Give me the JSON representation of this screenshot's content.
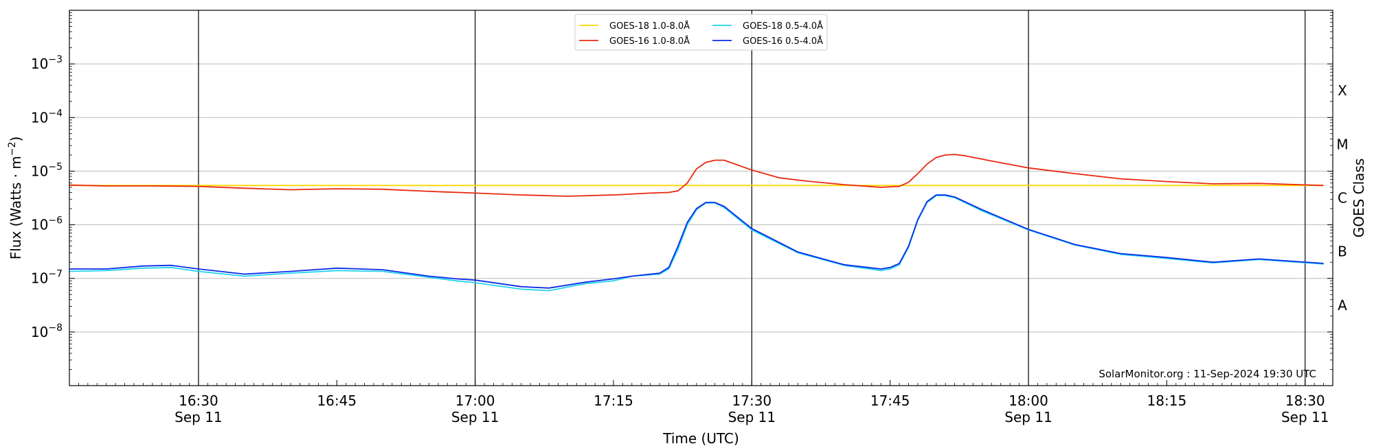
{
  "chart_data": {
    "type": "line",
    "xlabel": "Time (UTC)",
    "ylabel": "Flux (Watts · m⁻²)",
    "y2label": "GOES Class",
    "y_scale": "log",
    "ylim": [
      1e-09,
      0.01
    ],
    "xlim": [
      "16:16",
      "18:33"
    ],
    "x_ticks": [
      {
        "time": "16:30",
        "label": "16:30",
        "date": "Sep 11",
        "major": true
      },
      {
        "time": "16:45",
        "label": "16:45",
        "date": "",
        "major": false
      },
      {
        "time": "17:00",
        "label": "17:00",
        "date": "Sep 11",
        "major": true
      },
      {
        "time": "17:15",
        "label": "17:15",
        "date": "",
        "major": false
      },
      {
        "time": "17:30",
        "label": "17:30",
        "date": "Sep 11",
        "major": true
      },
      {
        "time": "17:45",
        "label": "17:45",
        "date": "",
        "major": false
      },
      {
        "time": "18:00",
        "label": "18:00",
        "date": "Sep 11",
        "major": true
      },
      {
        "time": "18:15",
        "label": "18:15",
        "date": "",
        "major": false
      },
      {
        "time": "18:30",
        "label": "18:30",
        "date": "Sep 11",
        "major": true
      }
    ],
    "y_ticks": [
      {
        "exp": -8,
        "base": "10",
        "sup": "−8"
      },
      {
        "exp": -7,
        "base": "10",
        "sup": "−7"
      },
      {
        "exp": -6,
        "base": "10",
        "sup": "−6"
      },
      {
        "exp": -5,
        "base": "10",
        "sup": "−5"
      },
      {
        "exp": -4,
        "base": "10",
        "sup": "−4"
      },
      {
        "exp": -3,
        "base": "10",
        "sup": "−3"
      }
    ],
    "goes_classes": [
      {
        "label": "A",
        "exp": -7.5
      },
      {
        "label": "B",
        "exp": -6.5
      },
      {
        "label": "C",
        "exp": -5.5
      },
      {
        "label": "M",
        "exp": -4.5
      },
      {
        "label": "X",
        "exp": -3.5
      }
    ],
    "grid": "horizontal",
    "legend_position": "top-center",
    "legend_columns": 2,
    "credit": "SolarMonitor.org : 11-Sep-2024 19:30 UTC",
    "series": [
      {
        "name": "GOES-18 1.0-8.0Å",
        "color": "#FFD700",
        "x": [
          "16:16",
          "18:32"
        ],
        "values": [
          5.4e-06,
          5.4e-06
        ]
      },
      {
        "name": "GOES-16 1.0-8.0Å",
        "color": "#E8280F",
        "x": [
          "16:16",
          "16:20",
          "16:25",
          "16:30",
          "16:35",
          "16:40",
          "16:45",
          "16:50",
          "16:55",
          "17:00",
          "17:05",
          "17:10",
          "17:15",
          "17:19",
          "17:21",
          "17:22",
          "17:23",
          "17:24",
          "17:25",
          "17:26",
          "17:27",
          "17:30",
          "17:33",
          "17:36",
          "17:40",
          "17:44",
          "17:46",
          "17:47",
          "17:48",
          "17:49",
          "17:50",
          "17:51",
          "17:52",
          "17:53",
          "17:56",
          "18:00",
          "18:05",
          "18:10",
          "18:15",
          "18:20",
          "18:25",
          "18:32"
        ],
        "values": [
          5.5e-06,
          5.3e-06,
          5.3e-06,
          5.2e-06,
          4.8e-06,
          4.5e-06,
          4.7e-06,
          4.6e-06,
          4.2e-06,
          3.9e-06,
          3.6e-06,
          3.4e-06,
          3.6e-06,
          3.9e-06,
          4e-06,
          4.3e-06,
          6e-06,
          1.1e-05,
          1.45e-05,
          1.6e-05,
          1.6e-05,
          1.05e-05,
          7.5e-06,
          6.5e-06,
          5.6e-06,
          5e-06,
          5.2e-06,
          6.2e-06,
          9e-06,
          1.35e-05,
          1.8e-05,
          2e-05,
          2.05e-05,
          1.95e-05,
          1.55e-05,
          1.15e-05,
          9e-06,
          7.2e-06,
          6.4e-06,
          5.8e-06,
          5.9e-06,
          5.4e-06
        ]
      },
      {
        "name": "GOES-18 0.5-4.0Å",
        "color": "#22D3EE",
        "x": [
          "16:16",
          "16:20",
          "16:24",
          "16:27",
          "16:30",
          "16:35",
          "16:40",
          "16:45",
          "16:50",
          "16:55",
          "16:58",
          "17:00",
          "17:05",
          "17:08",
          "17:12",
          "17:15",
          "17:17",
          "17:20",
          "17:21",
          "17:22",
          "17:23",
          "17:24",
          "17:25",
          "17:26",
          "17:27",
          "17:30",
          "17:35",
          "17:40",
          "17:44",
          "17:45",
          "17:46",
          "17:47",
          "17:48",
          "17:49",
          "17:50",
          "17:51",
          "17:52",
          "17:55",
          "18:00",
          "18:05",
          "18:10",
          "18:15",
          "18:20",
          "18:25",
          "18:32"
        ],
        "values": [
          1.35e-07,
          1.4e-07,
          1.55e-07,
          1.6e-07,
          1.35e-07,
          1.1e-07,
          1.25e-07,
          1.4e-07,
          1.35e-07,
          1.05e-07,
          9e-08,
          8.3e-08,
          6.3e-08,
          5.9e-08,
          8e-08,
          9e-08,
          1.1e-07,
          1.2e-07,
          1.5e-07,
          3.5e-07,
          1e-06,
          1.9e-06,
          2.55e-06,
          2.55e-06,
          2.1e-06,
          8e-07,
          3e-07,
          1.75e-07,
          1.4e-07,
          1.5e-07,
          1.8e-07,
          3.8e-07,
          1.2e-06,
          2.6e-06,
          3.5e-06,
          3.5e-06,
          3.2e-06,
          1.8e-06,
          8e-07,
          4.2e-07,
          2.8e-07,
          2.35e-07,
          1.95e-07,
          2.25e-07,
          1.85e-07
        ]
      },
      {
        "name": "GOES-16 0.5-4.0Å",
        "color": "#0A2BE8",
        "x": [
          "16:16",
          "16:20",
          "16:24",
          "16:27",
          "16:30",
          "16:35",
          "16:40",
          "16:45",
          "16:50",
          "16:55",
          "16:58",
          "17:00",
          "17:05",
          "17:08",
          "17:12",
          "17:15",
          "17:17",
          "17:20",
          "17:21",
          "17:22",
          "17:23",
          "17:24",
          "17:25",
          "17:26",
          "17:27",
          "17:30",
          "17:35",
          "17:40",
          "17:44",
          "17:45",
          "17:46",
          "17:47",
          "17:48",
          "17:49",
          "17:50",
          "17:51",
          "17:52",
          "17:55",
          "18:00",
          "18:05",
          "18:10",
          "18:15",
          "18:20",
          "18:25",
          "18:32"
        ],
        "values": [
          1.5e-07,
          1.5e-07,
          1.7e-07,
          1.75e-07,
          1.5e-07,
          1.2e-07,
          1.35e-07,
          1.55e-07,
          1.45e-07,
          1.1e-07,
          9.8e-08,
          9.3e-08,
          7e-08,
          6.6e-08,
          8.5e-08,
          9.8e-08,
          1.1e-07,
          1.25e-07,
          1.6e-07,
          4e-07,
          1.1e-06,
          2e-06,
          2.6e-06,
          2.6e-06,
          2.2e-06,
          8.5e-07,
          3.1e-07,
          1.8e-07,
          1.5e-07,
          1.6e-07,
          1.9e-07,
          4e-07,
          1.25e-06,
          2.7e-06,
          3.6e-06,
          3.6e-06,
          3.3e-06,
          1.9e-06,
          8.2e-07,
          4.3e-07,
          2.9e-07,
          2.45e-07,
          2e-07,
          2.3e-07,
          1.9e-07
        ]
      }
    ]
  }
}
